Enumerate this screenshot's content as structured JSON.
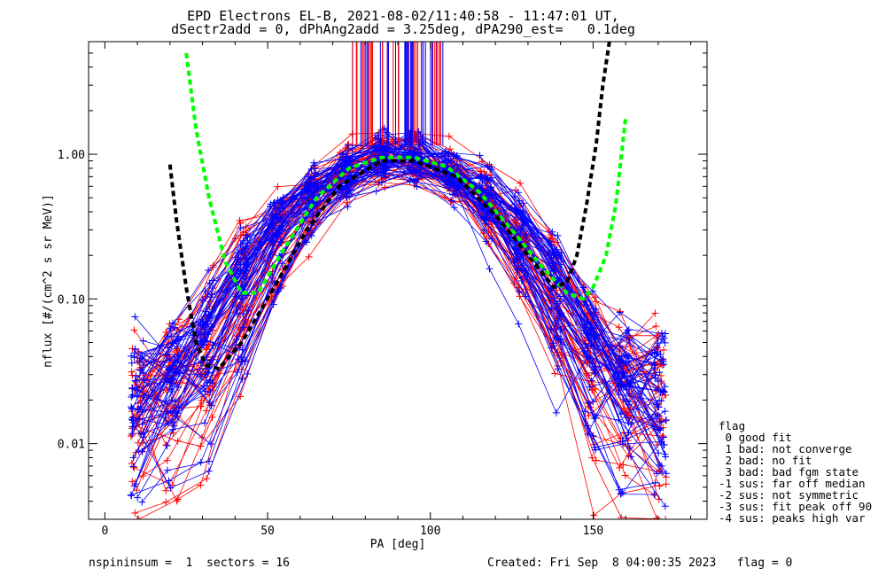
{
  "title_line1": "EPD Electrons EL-B, 2021-08-02/11:40:58 - 11:47:01 UT,",
  "title_line2": "dSectr2add = 0, dPhAng2add = 3.25deg, dPA290_est=   0.1deg",
  "footer": {
    "left": "nspininsum =  1  sectors = 16",
    "right": "Created: Fri Sep  8 04:00:35 2023   flag = 0"
  },
  "legend": {
    "title": "flag",
    "items": [
      " 0 good fit",
      " 1 bad: not converge",
      " 2 bad: no fit",
      " 3 bad: bad fgm state",
      "-1 sus: far off median",
      "-2 sus: not symmetric",
      "-3 sus: fit peak off 90",
      "-4 sus: peaks high var"
    ]
  },
  "colors": {
    "red_series": "#ff0000",
    "blue_series": "#0000ff",
    "green_fit": "#00ff00",
    "black_fit": "#000000"
  },
  "chart_data": {
    "type": "line",
    "title": "EPD Electrons EL-B, 2021-08-02/11:40:58 - 11:47:01 UT,",
    "subtitle": "dSectr2add = 0, dPhAng2add = 3.25deg, dPA290_est=   0.1deg",
    "xlabel": "PA [deg]",
    "ylabel": "nflux [#/(cm^2 s sr MeV)]",
    "xlim": [
      -5,
      185
    ],
    "ylim": [
      0.003,
      6
    ],
    "yscale": "log",
    "xticks": [
      0,
      50,
      100,
      150
    ],
    "xtick_labels": [
      "0",
      "50",
      "100",
      "150"
    ],
    "yticks": [
      0.01,
      0.1,
      1.0
    ],
    "ytick_labels": [
      "0.01",
      "0.10",
      "1.00"
    ],
    "grid": false,
    "series": [
      {
        "color": "red",
        "description_points": [
          [
            12,
            0.004
          ],
          [
            20,
            0.012
          ],
          [
            30,
            0.03
          ],
          [
            40,
            0.09
          ],
          [
            50,
            0.2
          ],
          [
            60,
            0.4
          ],
          [
            70,
            0.75
          ],
          [
            80,
            0.95
          ],
          [
            90,
            1.0
          ],
          [
            100,
            0.95
          ],
          [
            110,
            0.75
          ],
          [
            120,
            0.45
          ],
          [
            130,
            0.2
          ],
          [
            140,
            0.08
          ],
          [
            150,
            0.03
          ],
          [
            160,
            0.012
          ],
          [
            170,
            0.005
          ]
        ]
      },
      {
        "color": "blue",
        "description_points": [
          [
            10,
            0.004
          ],
          [
            20,
            0.01
          ],
          [
            30,
            0.025
          ],
          [
            40,
            0.07
          ],
          [
            50,
            0.17
          ],
          [
            60,
            0.35
          ],
          [
            70,
            0.7
          ],
          [
            80,
            0.9
          ],
          [
            90,
            0.95
          ],
          [
            100,
            0.9
          ],
          [
            110,
            0.7
          ],
          [
            120,
            0.4
          ],
          [
            130,
            0.17
          ],
          [
            140,
            0.07
          ],
          [
            150,
            0.025
          ],
          [
            160,
            0.01
          ],
          [
            170,
            0.004
          ]
        ]
      },
      {
        "color": "green",
        "style": "dashed",
        "points": [
          [
            25,
            5.0
          ],
          [
            28,
            1.5
          ],
          [
            32,
            0.5
          ],
          [
            37,
            0.18
          ],
          [
            42,
            0.11
          ],
          [
            47,
            0.11
          ],
          [
            55,
            0.22
          ],
          [
            65,
            0.5
          ],
          [
            75,
            0.8
          ],
          [
            85,
            0.95
          ],
          [
            95,
            0.95
          ],
          [
            105,
            0.82
          ],
          [
            115,
            0.55
          ],
          [
            125,
            0.3
          ],
          [
            135,
            0.16
          ],
          [
            142,
            0.11
          ],
          [
            147,
            0.1
          ],
          [
            150,
            0.12
          ],
          [
            154,
            0.2
          ],
          [
            157,
            0.45
          ],
          [
            160,
            1.8
          ]
        ]
      },
      {
        "color": "black",
        "style": "dashed",
        "points": [
          [
            20,
            0.85
          ],
          [
            22,
            0.35
          ],
          [
            25,
            0.12
          ],
          [
            28,
            0.05
          ],
          [
            31,
            0.035
          ],
          [
            35,
            0.033
          ],
          [
            42,
            0.05
          ],
          [
            52,
            0.12
          ],
          [
            62,
            0.3
          ],
          [
            72,
            0.6
          ],
          [
            85,
            0.9
          ],
          [
            95,
            0.9
          ],
          [
            108,
            0.7
          ],
          [
            120,
            0.38
          ],
          [
            130,
            0.2
          ],
          [
            138,
            0.12
          ],
          [
            142,
            0.13
          ],
          [
            145,
            0.2
          ],
          [
            148,
            0.45
          ],
          [
            151,
            1.2
          ],
          [
            153,
            3.0
          ],
          [
            155,
            6.0
          ]
        ]
      }
    ]
  }
}
